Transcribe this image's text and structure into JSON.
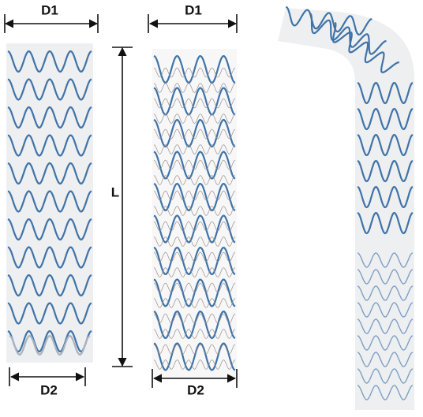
{
  "stents": [
    {
      "top": "D1",
      "length": "L",
      "bottom": "D2"
    },
    {
      "top": "D1",
      "bottom": "D2"
    }
  ]
}
